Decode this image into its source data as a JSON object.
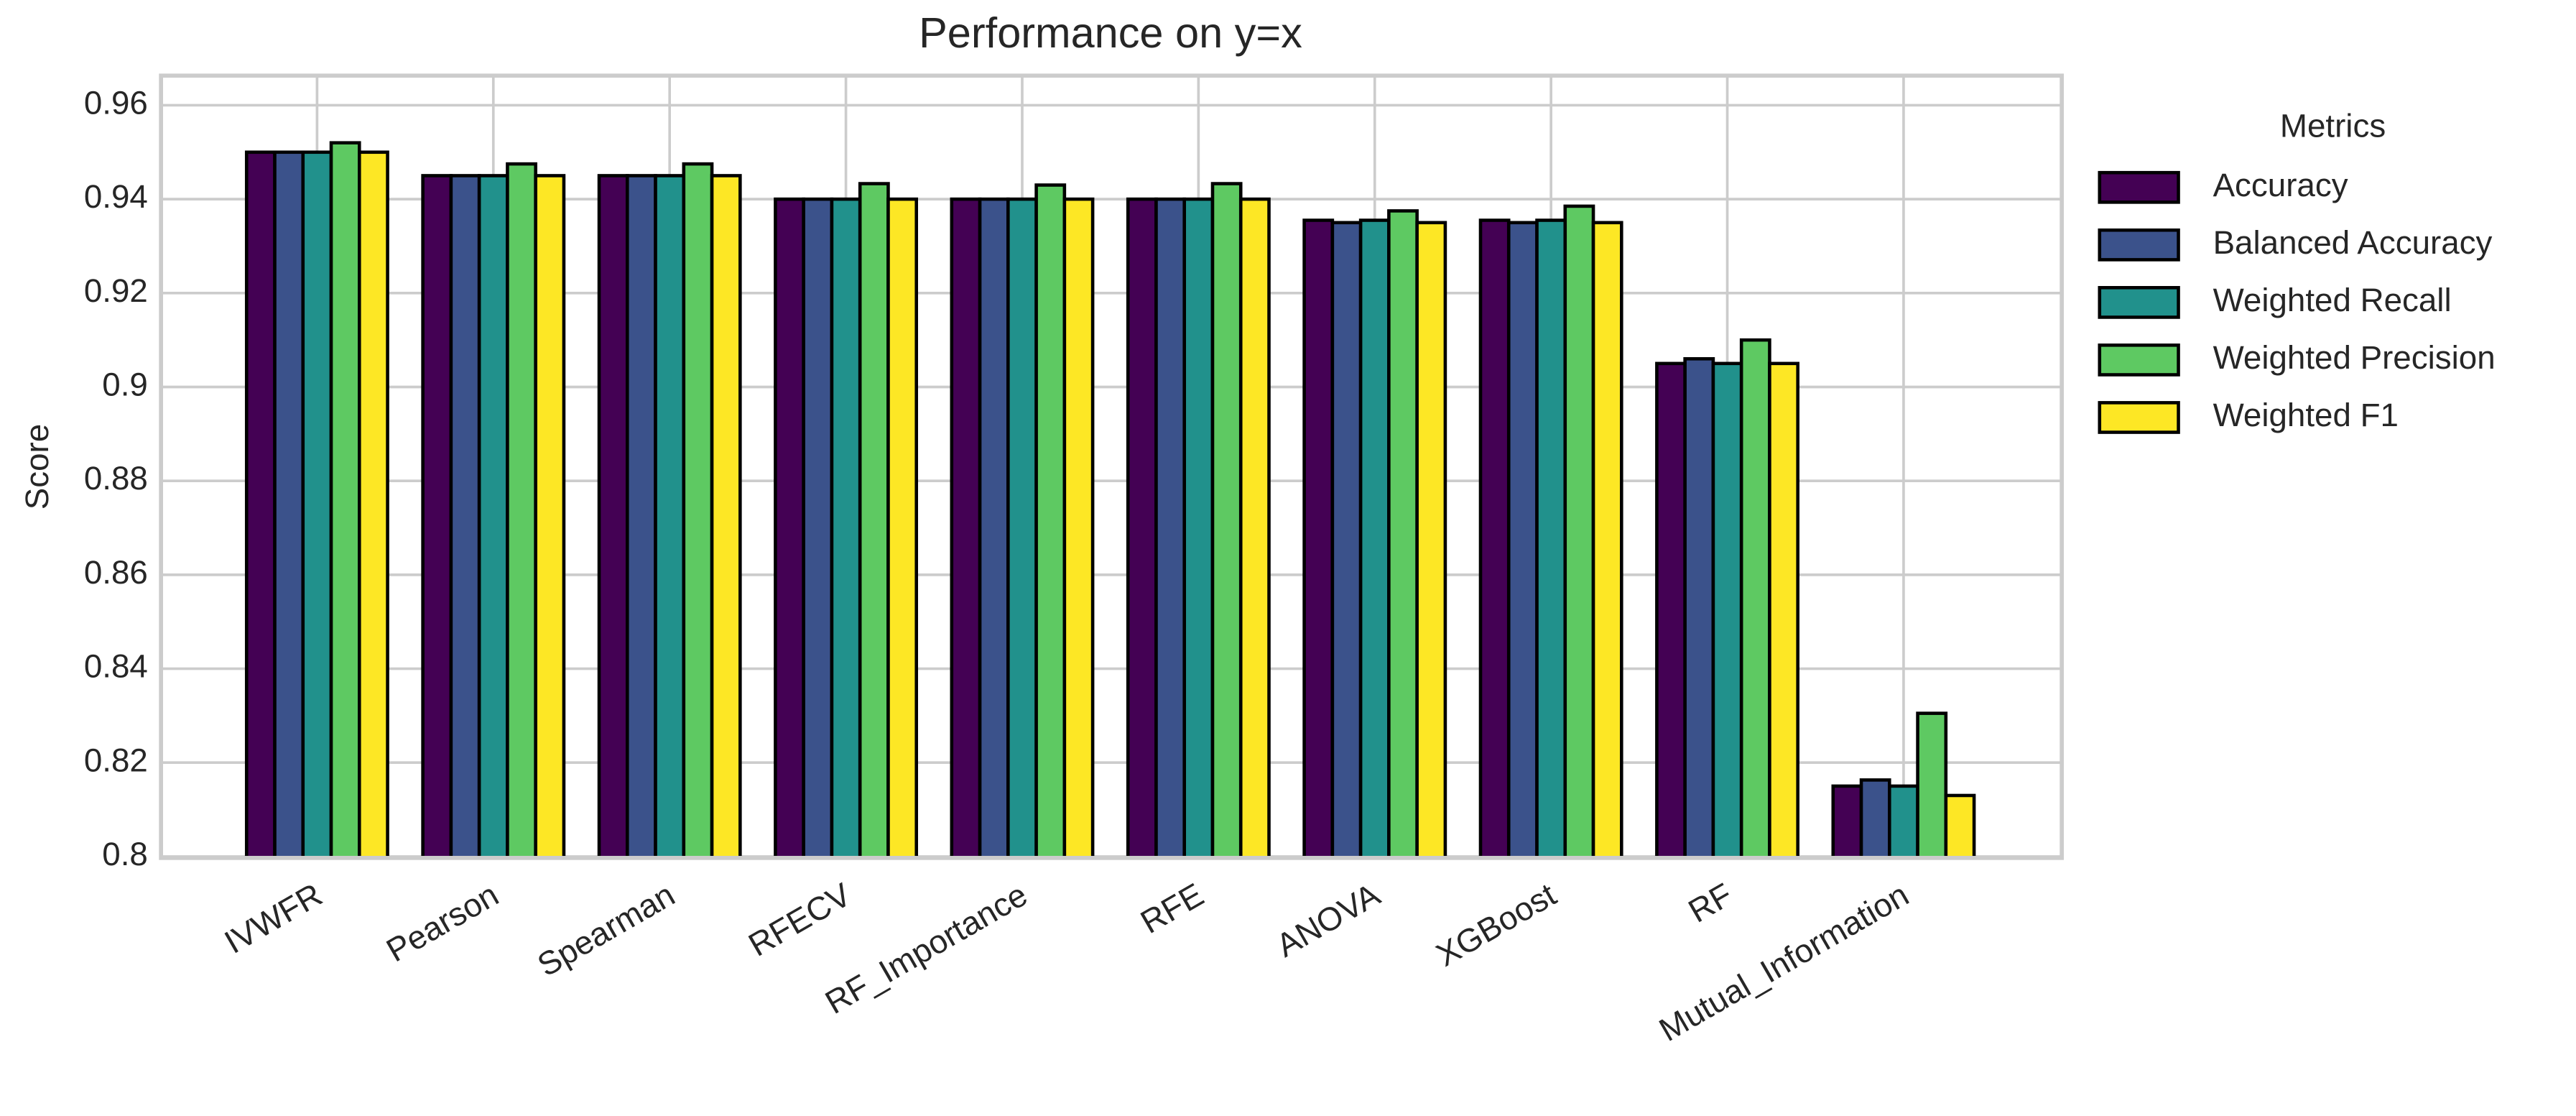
{
  "chart_data": {
    "type": "bar",
    "title": "Performance on y=x",
    "ylabel": "Score",
    "categories": [
      "IVWFR",
      "Pearson",
      "Spearman",
      "RFECV",
      "RF_Importance",
      "RFE",
      "ANOVA",
      "XGBoost",
      "RF",
      "Mutual_Information"
    ],
    "legend_title": "Metrics",
    "legend": "outside right",
    "grid": true,
    "ylim": [
      0.7997,
      0.9663
    ],
    "yticks": [
      0.8,
      0.82,
      0.84,
      0.86,
      0.88,
      0.9,
      0.92,
      0.94,
      0.96
    ],
    "series": [
      {
        "name": "Accuracy",
        "color": "#440154",
        "values": [
          0.95,
          0.945,
          0.945,
          0.94,
          0.94,
          0.94,
          0.9355,
          0.9355,
          0.905,
          0.815
        ]
      },
      {
        "name": "Balanced Accuracy",
        "color": "#3b528b",
        "values": [
          0.95,
          0.945,
          0.945,
          0.94,
          0.94,
          0.94,
          0.935,
          0.935,
          0.906,
          0.8163
        ]
      },
      {
        "name": "Weighted Recall",
        "color": "#21918c",
        "values": [
          0.95,
          0.945,
          0.945,
          0.94,
          0.94,
          0.94,
          0.9355,
          0.9355,
          0.905,
          0.815
        ]
      },
      {
        "name": "Weighted Precision",
        "color": "#5ec962",
        "values": [
          0.952,
          0.9475,
          0.9475,
          0.9433,
          0.943,
          0.9433,
          0.9375,
          0.9385,
          0.91,
          0.8305
        ]
      },
      {
        "name": "Weighted F1",
        "color": "#fde725",
        "values": [
          0.95,
          0.945,
          0.945,
          0.94,
          0.94,
          0.94,
          0.935,
          0.935,
          0.905,
          0.813
        ]
      }
    ]
  }
}
